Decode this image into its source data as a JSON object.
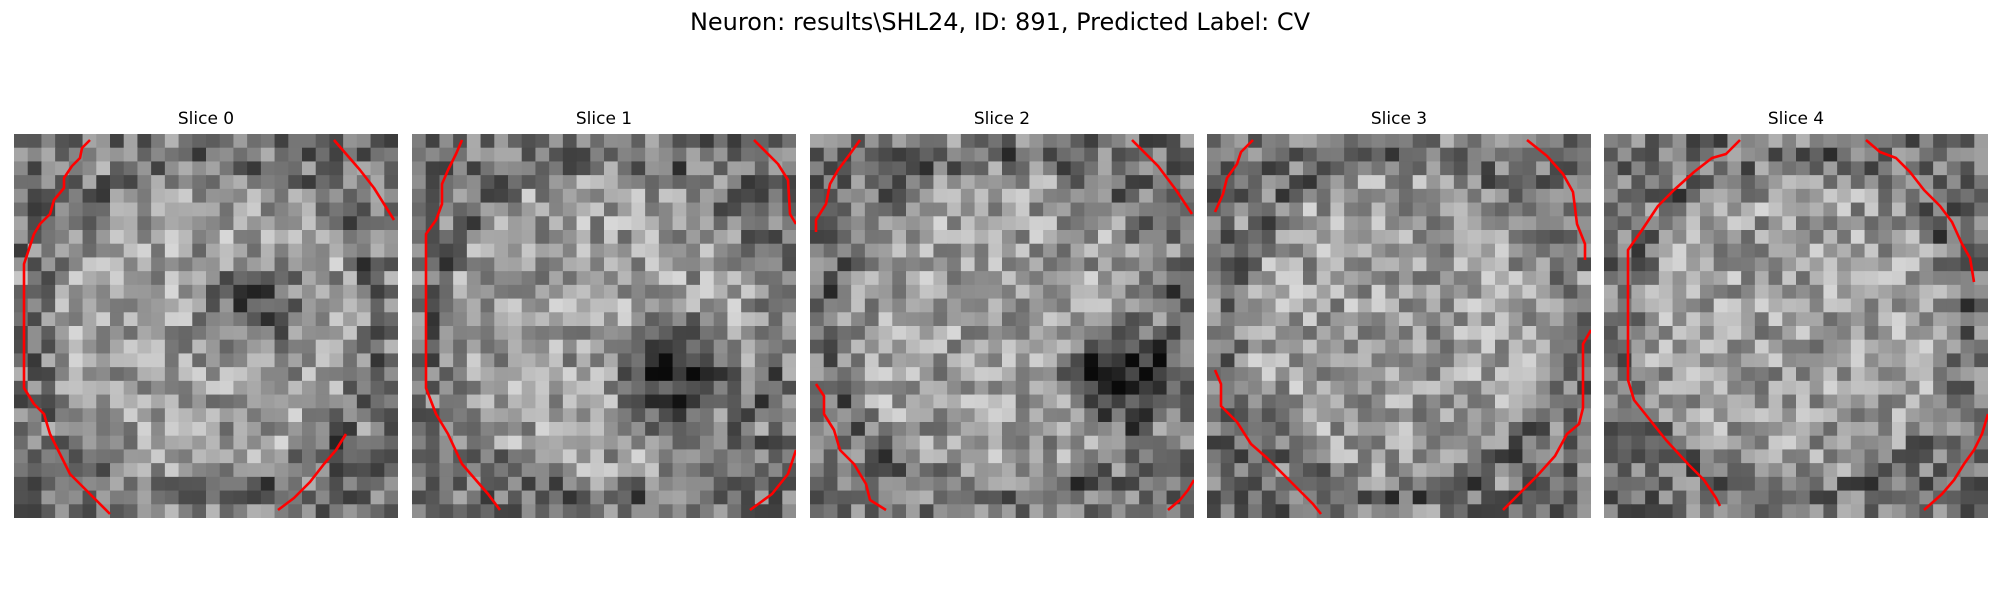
{
  "figure": {
    "suptitle": "Neuron: results\\SHL24, ID: 891, Predicted Label: CV"
  },
  "panels": [
    {
      "title": "Slice 0"
    },
    {
      "title": "Slice 1"
    },
    {
      "title": "Slice 2"
    },
    {
      "title": "Slice 3"
    },
    {
      "title": "Slice 4"
    }
  ],
  "colors": {
    "contour": "#ff0000",
    "background": "#ffffff",
    "colormap": "gray"
  }
}
